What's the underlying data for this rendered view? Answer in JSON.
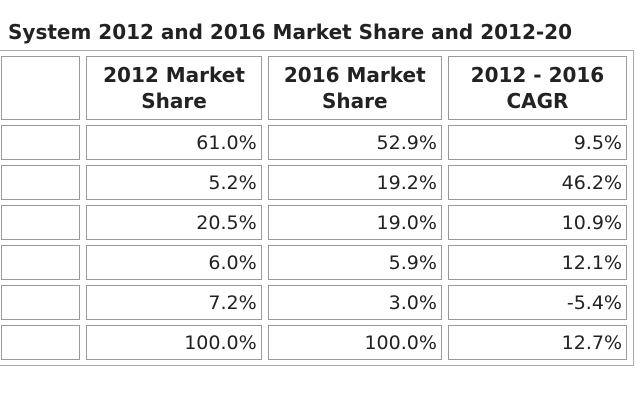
{
  "title": "System 2012 and 2016 Market Share and 2012-20",
  "table": {
    "header": [
      "2012 Market Share",
      "2016 Market Share",
      "2012 - 2016 CAGR"
    ],
    "rows": [
      [
        "61.0%",
        "52.9%",
        "9.5%"
      ],
      [
        "5.2%",
        "19.2%",
        "46.2%"
      ],
      [
        "20.5%",
        "19.0%",
        "10.9%"
      ],
      [
        "6.0%",
        "5.9%",
        "12.1%"
      ],
      [
        "7.2%",
        "3.0%",
        "-5.4%"
      ],
      [
        "100.0%",
        "100.0%",
        "12.7%"
      ]
    ]
  }
}
